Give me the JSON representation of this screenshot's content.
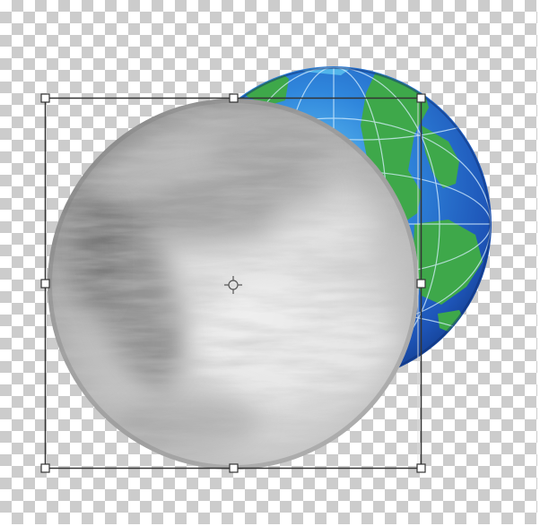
{
  "canvas": {
    "background": "transparency-checkerboard",
    "checker_colors": [
      "#ffffff",
      "#cccccc"
    ]
  },
  "layers": [
    {
      "name": "globe",
      "colors": {
        "ocean": "#2a6fd0",
        "ocean_dark": "#123c8c",
        "ocean_light": "#5cc4f0",
        "land": "#3ea84a",
        "grid": "#d8f0ff"
      }
    },
    {
      "name": "fur-disc",
      "colors": {
        "light": "#e8e8e8",
        "mid": "#b4b4b4",
        "dark": "#5f5f5f"
      }
    }
  ],
  "transform": {
    "handles": [
      "top-left",
      "top-center",
      "top-right",
      "middle-left",
      "middle-right",
      "bottom-left",
      "bottom-center",
      "bottom-right"
    ],
    "center_marker": "crosshair-icon",
    "stroke_color": "#333333"
  }
}
